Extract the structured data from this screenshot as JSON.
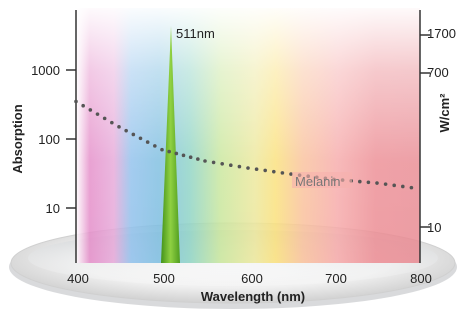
{
  "chart_data": {
    "type": "line",
    "title": "",
    "xlabel": "Wavelength (nm)",
    "ylabel_left": "Absorption",
    "ylabel_right": "W/cm²",
    "xlim": [
      400,
      800
    ],
    "x_ticks": [
      400,
      500,
      600,
      700,
      800
    ],
    "y_left_scale": "log",
    "y_left_ticks": [
      10,
      100,
      1000
    ],
    "y_right_ticks": [
      10,
      700,
      1700
    ],
    "series": [
      {
        "name": "Melanin",
        "style": "dotted",
        "color": "#555555",
        "x": [
          400,
          450,
          500,
          550,
          600,
          650,
          700,
          750,
          800
        ],
        "y": [
          350,
          150,
          70,
          48,
          38,
          31,
          26,
          23,
          19
        ]
      }
    ],
    "annotations": [
      {
        "label": "511nm",
        "wavelength": 511,
        "type": "laser-line",
        "color": "#5fae1a"
      }
    ],
    "background": "visible-spectrum gradient"
  }
}
